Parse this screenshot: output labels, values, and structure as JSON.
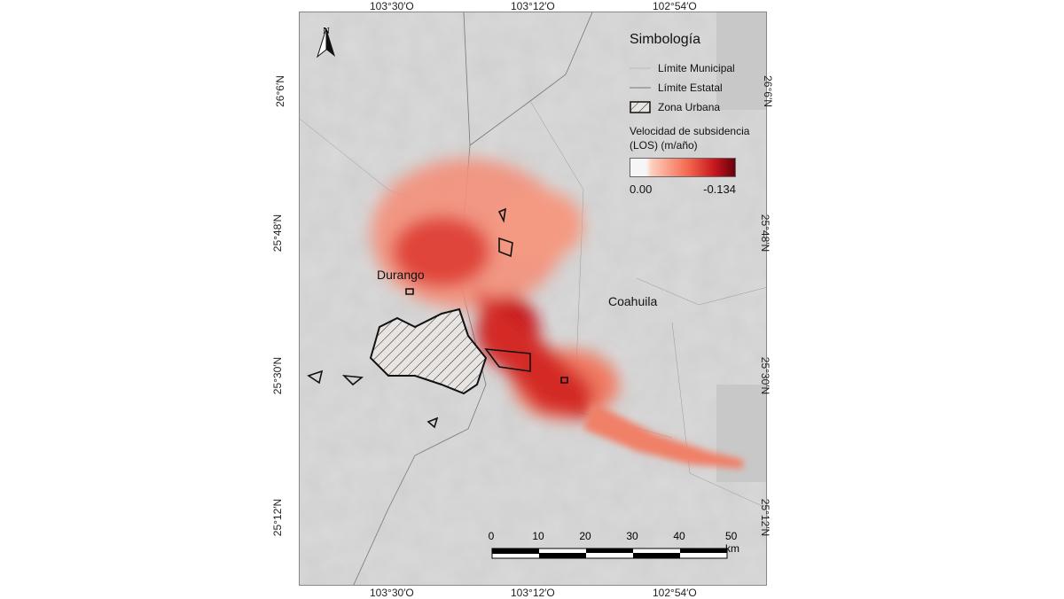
{
  "map": {
    "top_ticks": [
      "103°30′O",
      "103°12′O",
      "102°54′O"
    ],
    "bottom_ticks": [
      "103°30′O",
      "103°12′O",
      "102°54′O"
    ],
    "left_ticks": [
      "26°6′N",
      "25°48′N",
      "25°30′N",
      "25°12′N"
    ],
    "right_ticks": [
      "26°6′N",
      "25°48′N",
      "25°30′N",
      "25°12′N"
    ],
    "north_arrow": "N",
    "place_labels": {
      "durango": "Durango",
      "coahuila": "Coahuila"
    }
  },
  "legend": {
    "title": "Simbología",
    "municipal": "Límite Municipal",
    "estatal": "Límite Estatal",
    "urbana": "Zona Urbana",
    "ramp_title": "Velocidad de subsidencia (LOS) (m/año)",
    "ramp_min": "0.00",
    "ramp_max": "-0.134",
    "colors": [
      "#f6f6f6",
      "#fdd0bd",
      "#f4684f",
      "#c8171e",
      "#67000d"
    ]
  },
  "scale": {
    "labels": [
      "0",
      "10",
      "20",
      "30",
      "40",
      "50 km"
    ]
  }
}
